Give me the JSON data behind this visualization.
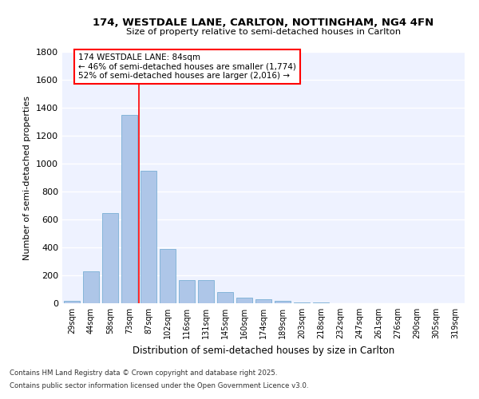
{
  "title_line1": "174, WESTDALE LANE, CARLTON, NOTTINGHAM, NG4 4FN",
  "title_line2": "Size of property relative to semi-detached houses in Carlton",
  "xlabel": "Distribution of semi-detached houses by size in Carlton",
  "ylabel": "Number of semi-detached properties",
  "categories": [
    "29sqm",
    "44sqm",
    "58sqm",
    "73sqm",
    "87sqm",
    "102sqm",
    "116sqm",
    "131sqm",
    "145sqm",
    "160sqm",
    "174sqm",
    "189sqm",
    "203sqm",
    "218sqm",
    "232sqm",
    "247sqm",
    "261sqm",
    "276sqm",
    "290sqm",
    "305sqm",
    "319sqm"
  ],
  "values": [
    20,
    230,
    645,
    1350,
    950,
    390,
    165,
    165,
    80,
    40,
    28,
    15,
    8,
    3,
    1,
    0,
    0,
    0,
    0,
    0,
    0
  ],
  "bar_color": "#aec6e8",
  "bar_edgecolor": "#7aafd4",
  "vline_pos": 3.5,
  "vline_color": "red",
  "annotation_title": "174 WESTDALE LANE: 84sqm",
  "annotation_line2": "← 46% of semi-detached houses are smaller (1,774)",
  "annotation_line3": "52% of semi-detached houses are larger (2,016) →",
  "ylim": [
    0,
    1800
  ],
  "yticks": [
    0,
    200,
    400,
    600,
    800,
    1000,
    1200,
    1400,
    1600,
    1800
  ],
  "background_color": "#eef2ff",
  "grid_color": "#ffffff",
  "footer_line1": "Contains HM Land Registry data © Crown copyright and database right 2025.",
  "footer_line2": "Contains public sector information licensed under the Open Government Licence v3.0."
}
